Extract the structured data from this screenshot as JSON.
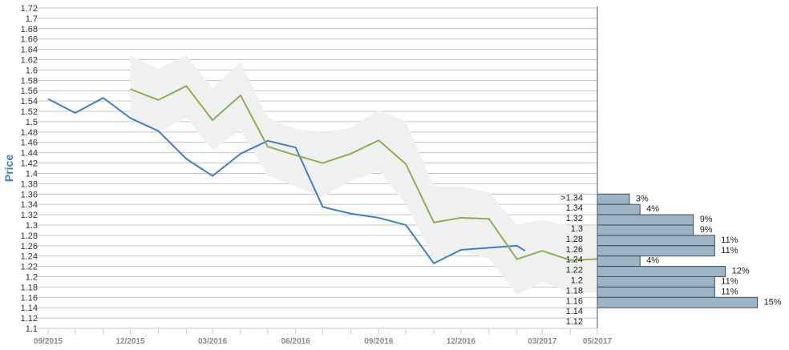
{
  "chart_data": {
    "type": "line",
    "ylabel": "Price",
    "ylim": [
      1.1,
      1.72
    ],
    "y_ticks": [
      "1.1",
      "1.12",
      "1.14",
      "1.16",
      "1.18",
      "1.2",
      "1.22",
      "1.24",
      "1.26",
      "1.28",
      "1.3",
      "1.32",
      "1.34",
      "1.36",
      "1.38",
      "1.4",
      "1.42",
      "1.44",
      "1.46",
      "1.48",
      "1.5",
      "1.52",
      "1.54",
      "1.56",
      "1.58",
      "1.6",
      "1.62",
      "1.64",
      "1.66",
      "1.68",
      "1.7",
      "1.72"
    ],
    "x_labels": [
      "09/2015",
      "12/2015",
      "03/2016",
      "06/2016",
      "09/2016",
      "12/2016",
      "03/2017",
      "05/2017"
    ],
    "grid": true,
    "colors": {
      "actual": "#3a7fd0",
      "forecast": "#8cb04e",
      "band": "#f0f0f0",
      "hist_bar": "#9cb4c4",
      "hist_border": "#3d4f5c",
      "ylabel": "#3a7fd0",
      "grid": "#c4c4c4"
    },
    "series": [
      {
        "key": "actual",
        "x": [
          "2015-09",
          "2015-10",
          "2015-11",
          "2015-12",
          "2016-01",
          "2016-02",
          "2016-03",
          "2016-04",
          "2016-05",
          "2016-06",
          "2016-07",
          "2016-08",
          "2016-09",
          "2016-10",
          "2016-11",
          "2016-12",
          "2017-01",
          "2017-02",
          "2017-02-10"
        ],
        "values": [
          1.544,
          1.517,
          1.546,
          1.507,
          1.482,
          1.428,
          1.395,
          1.438,
          1.463,
          1.45,
          1.335,
          1.322,
          1.314,
          1.3,
          1.226,
          1.252,
          1.256,
          1.26,
          1.25
        ]
      },
      {
        "key": "forecast",
        "x": [
          "2015-12",
          "2016-01",
          "2016-02",
          "2016-03",
          "2016-04",
          "2016-05",
          "2016-06",
          "2016-07",
          "2016-08",
          "2016-09",
          "2016-10",
          "2016-11",
          "2016-12",
          "2017-01",
          "2017-02",
          "2017-03",
          "2017-04",
          "2017-05"
        ],
        "values": [
          1.563,
          1.542,
          1.569,
          1.503,
          1.551,
          1.452,
          1.435,
          1.42,
          1.438,
          1.464,
          1.418,
          1.305,
          1.314,
          1.312,
          1.234,
          1.25,
          1.232,
          1.234
        ]
      }
    ],
    "forecast_band": {
      "x": [
        "2015-12",
        "2016-01",
        "2016-02",
        "2016-03",
        "2016-04",
        "2016-05",
        "2016-06",
        "2016-07",
        "2016-08",
        "2016-09",
        "2016-10",
        "2016-11",
        "2016-12",
        "2017-01",
        "2017-02",
        "2017-03",
        "2017-04",
        "2017-05"
      ],
      "upper": [
        1.628,
        1.602,
        1.628,
        1.565,
        1.615,
        1.508,
        1.485,
        1.48,
        1.488,
        1.523,
        1.5,
        1.375,
        1.375,
        1.363,
        1.3,
        1.31,
        1.298,
        1.3
      ],
      "lower": [
        1.505,
        1.48,
        1.508,
        1.445,
        1.485,
        1.395,
        1.375,
        1.355,
        1.385,
        1.405,
        1.34,
        1.235,
        1.25,
        1.235,
        1.165,
        1.19,
        1.17,
        1.17
      ]
    },
    "distribution": [
      {
        "bin": ">1.34",
        "value": 1.35,
        "percent": "3%",
        "pct": 3
      },
      {
        "bin": "1.34",
        "value": 1.33,
        "percent": "4%",
        "pct": 4
      },
      {
        "bin": "1.32",
        "value": 1.31,
        "percent": "9%",
        "pct": 9
      },
      {
        "bin": "1.3",
        "value": 1.29,
        "percent": "9%",
        "pct": 9
      },
      {
        "bin": "1.28",
        "value": 1.27,
        "percent": "11%",
        "pct": 11
      },
      {
        "bin": "1.26",
        "value": 1.25,
        "percent": "11%",
        "pct": 11
      },
      {
        "bin": "1.24",
        "value": 1.23,
        "percent": "4%",
        "pct": 4
      },
      {
        "bin": "1.22",
        "value": 1.21,
        "percent": "12%",
        "pct": 12
      },
      {
        "bin": "1.2",
        "value": 1.19,
        "percent": "11%",
        "pct": 11
      },
      {
        "bin": "1.18",
        "value": 1.17,
        "percent": "11%",
        "pct": 11
      },
      {
        "bin": "1.16",
        "value": 1.15,
        "percent": "15%",
        "pct": 15
      },
      {
        "bin": "1.14",
        "value": 1.13,
        "percent": "",
        "pct": 0
      },
      {
        "bin": "1.12",
        "value": 1.11,
        "percent": "",
        "pct": 0
      }
    ]
  }
}
